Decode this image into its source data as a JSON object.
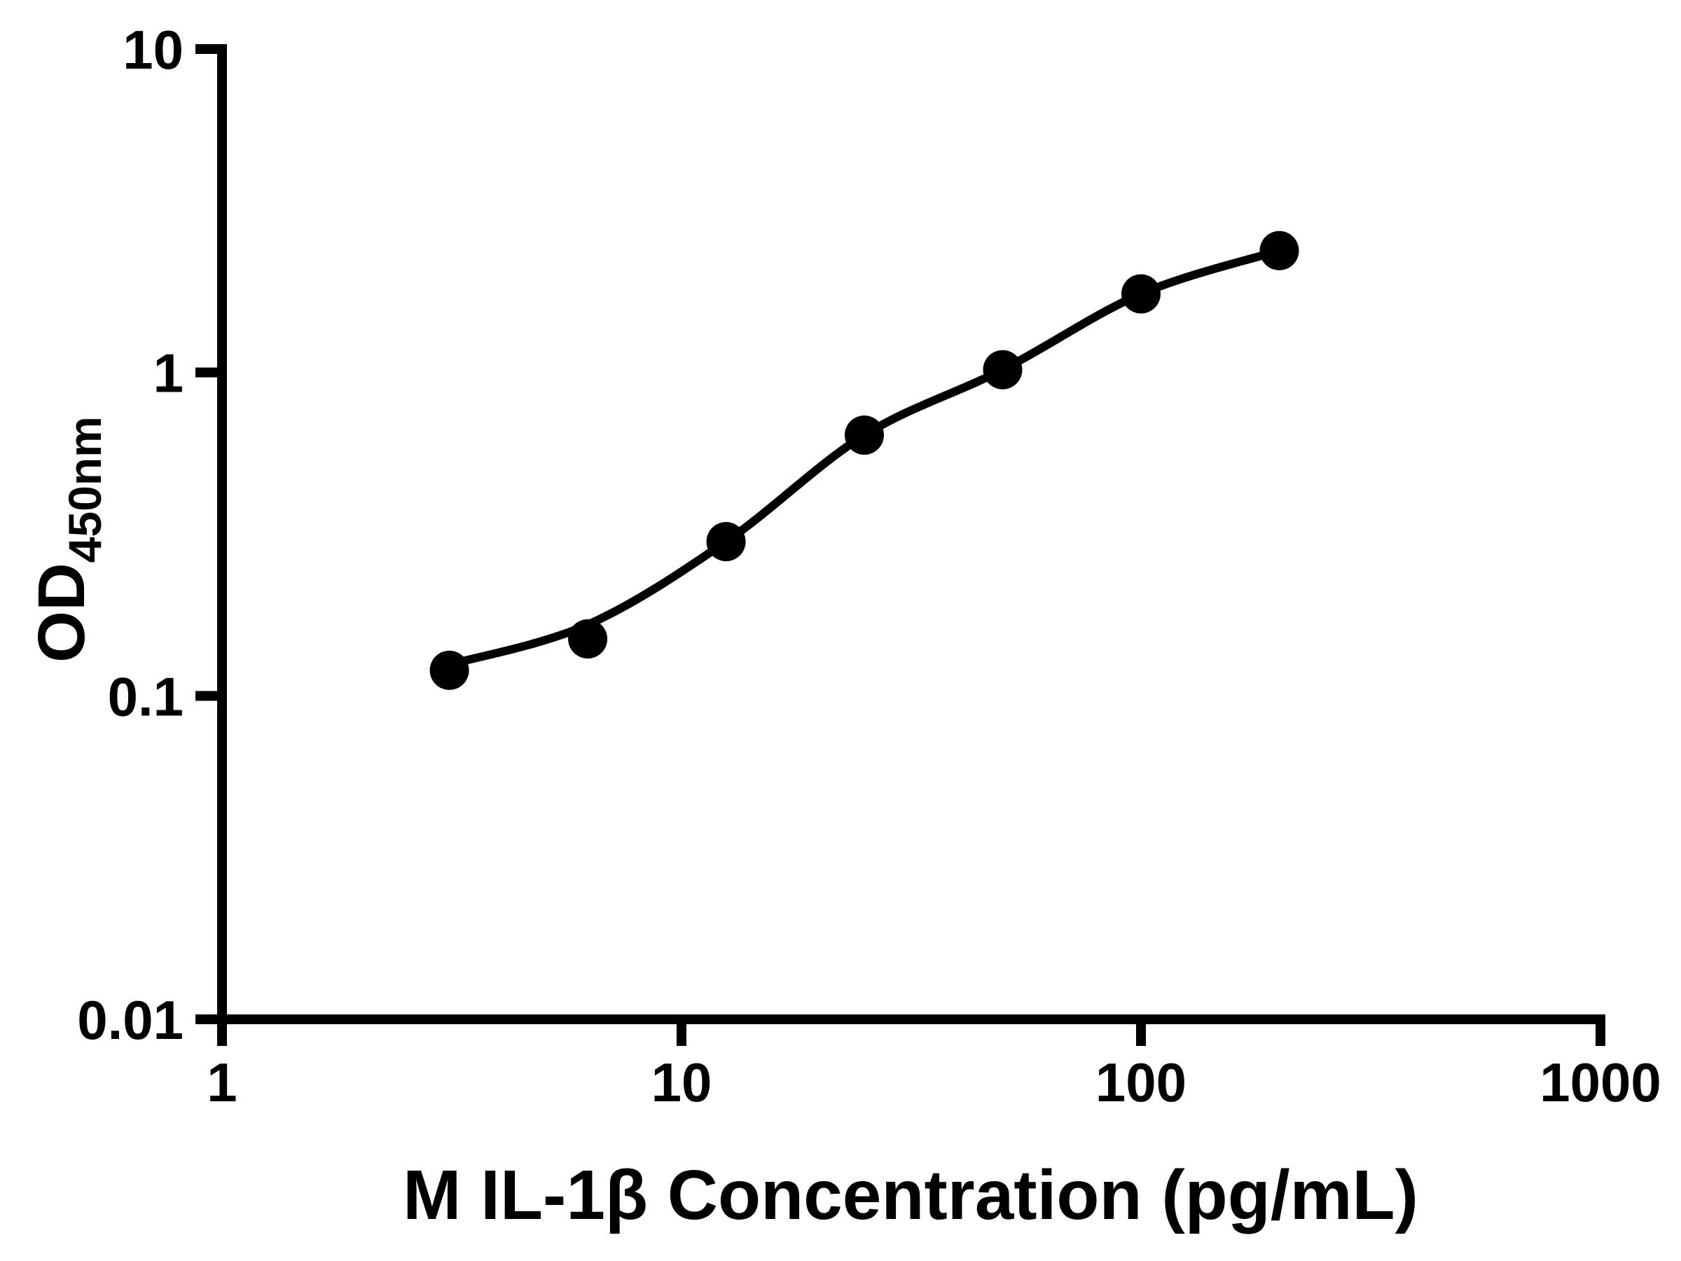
{
  "figure": {
    "background_color": "#ffffff",
    "foreground_color": "#000000"
  },
  "chart_data": {
    "type": "scatter",
    "title": "",
    "xlabel": "M IL-1β Concentration (pg/mL)",
    "ylabel_main": "OD",
    "ylabel_subscript": "450nm",
    "xscale": "log",
    "yscale": "log",
    "xlim": [
      1,
      1000
    ],
    "ylim": [
      0.01,
      10
    ],
    "grid": false,
    "legend_position": "none",
    "xticks": {
      "values": [
        1,
        10,
        100,
        1000
      ],
      "labels": [
        "1",
        "10",
        "100",
        "1000"
      ]
    },
    "yticks": {
      "values": [
        0.01,
        0.1,
        1,
        10
      ],
      "labels": [
        "0.01",
        "0.1",
        "1",
        "10"
      ]
    },
    "series": [
      {
        "name": "standard-curve-points",
        "marker": "filled-circle",
        "color": "#000000",
        "points": [
          {
            "x": 3.125,
            "y": 0.12
          },
          {
            "x": 6.25,
            "y": 0.15
          },
          {
            "x": 12.5,
            "y": 0.3
          },
          {
            "x": 25,
            "y": 0.64
          },
          {
            "x": 50,
            "y": 1.02
          },
          {
            "x": 100,
            "y": 1.75
          },
          {
            "x": 200,
            "y": 2.38
          }
        ]
      }
    ],
    "fit_curve": {
      "name": "4pl-fit-line",
      "color": "#000000",
      "x": [
        3.125,
        6.25,
        12.5,
        25,
        50,
        100,
        200
      ],
      "y": [
        0.125,
        0.166,
        0.3,
        0.64,
        1.02,
        1.75,
        2.38
      ]
    }
  }
}
